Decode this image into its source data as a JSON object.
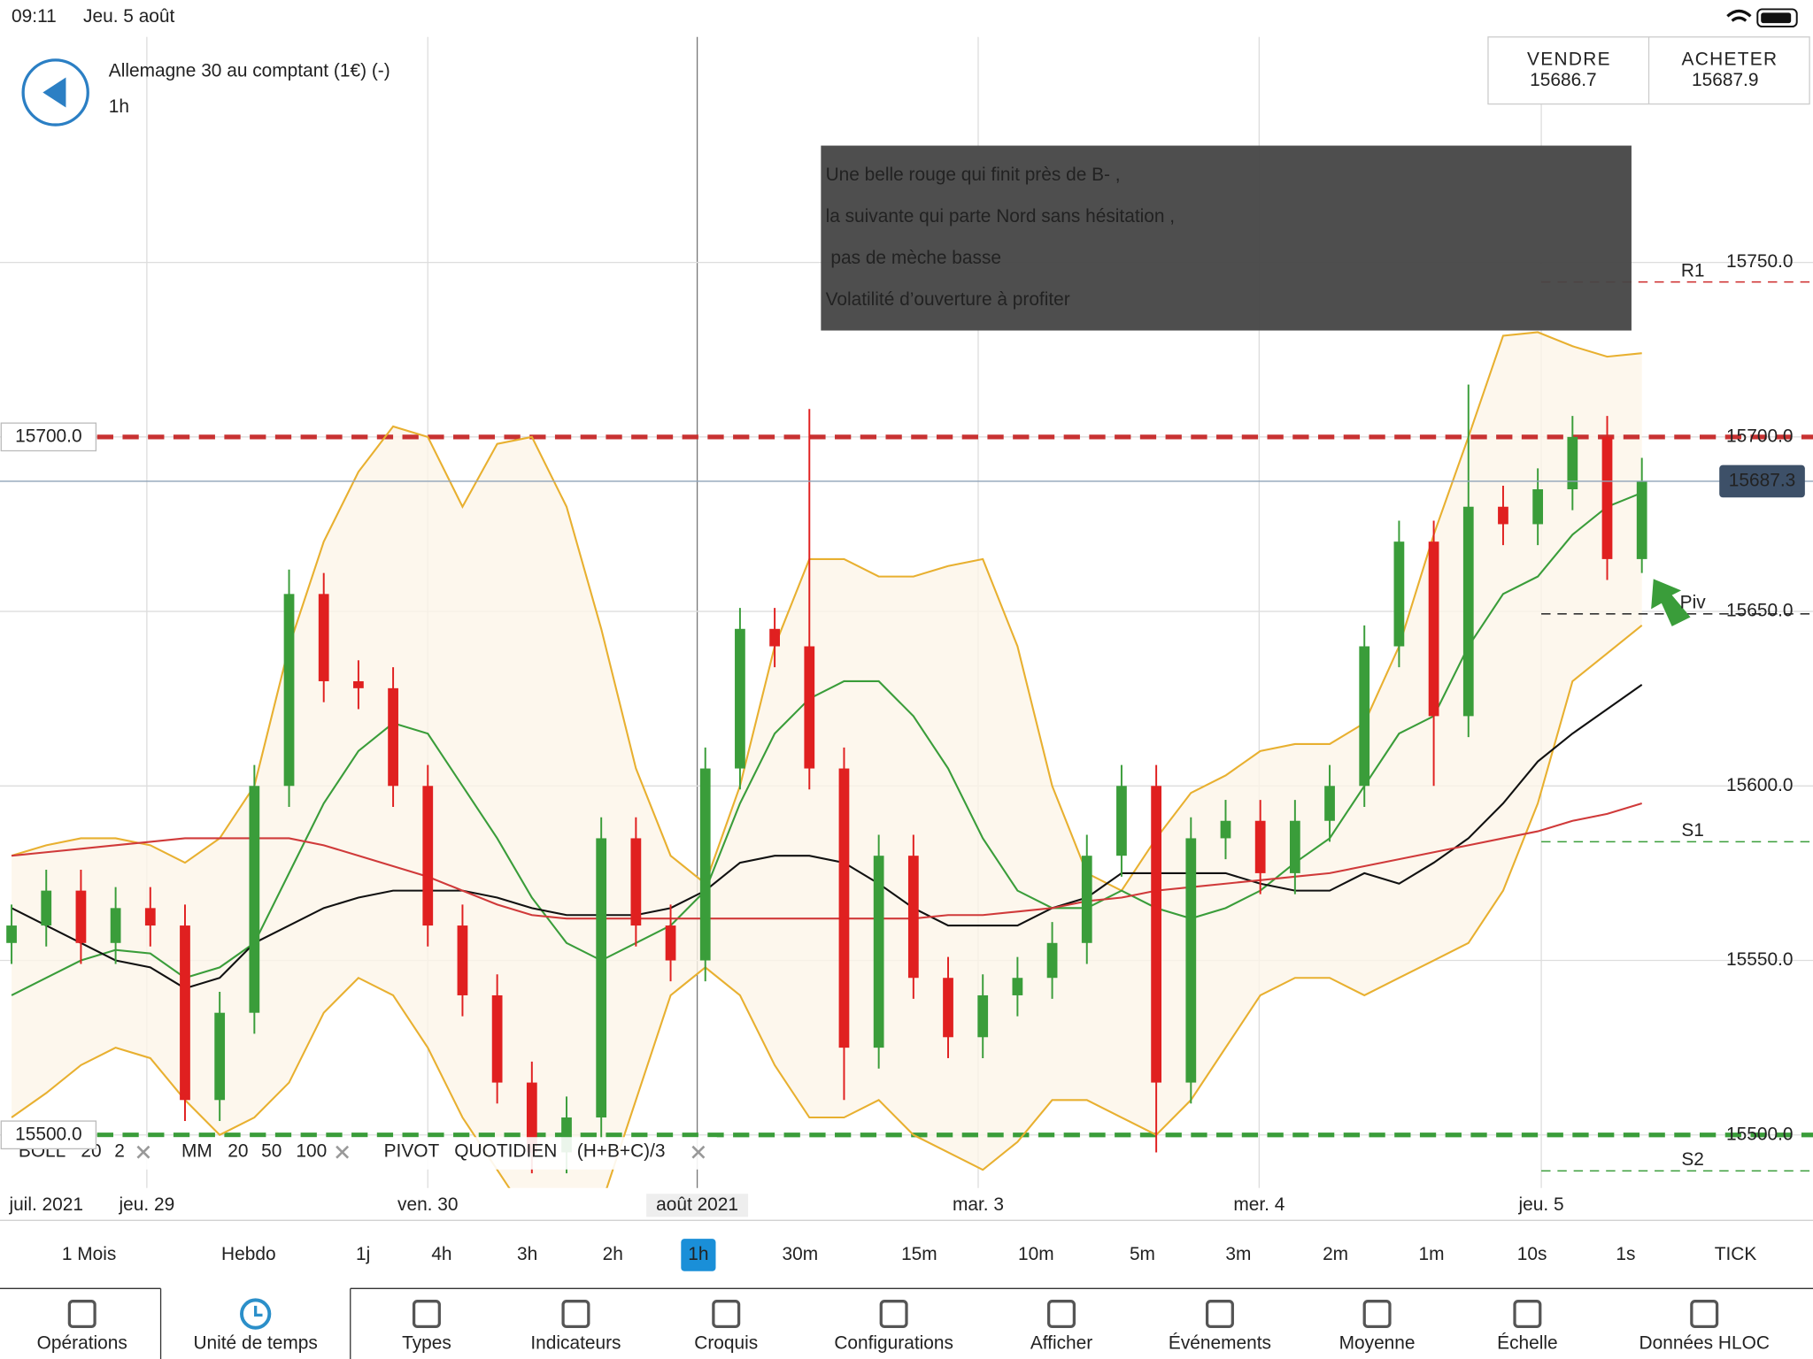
{
  "status_bar": {
    "time": "09:11",
    "date": "Jeu. 5 août"
  },
  "instrument": {
    "name": "Allemagne 30 au comptant (1€) (-)",
    "timeframe": "1h"
  },
  "quote": {
    "sell_label": "VENDRE",
    "sell_price": 15686.7,
    "buy_label": "ACHETER",
    "buy_price": 15687.9
  },
  "annotation": [
    "Une belle rouge qui finit près de B- ,",
    "la suivante qui parte Nord sans hésitation ,",
    " pas de mèche basse",
    "Volatilité d’ouverture à profiter"
  ],
  "chart_data": {
    "type": "candlestick",
    "up_color": "#3a9d3a",
    "down_color": "#e02020",
    "open": [
      15555,
      15560,
      15570,
      15555,
      15565,
      15560,
      15510,
      15535,
      15600,
      15655,
      15630,
      15628,
      15600,
      15560,
      15540,
      15515,
      15495,
      15505,
      15585,
      15560,
      15550,
      15605,
      15645,
      15640,
      15605,
      15525,
      15580,
      15545,
      15528,
      15540,
      15545,
      15555,
      15580,
      15600,
      15515,
      15585,
      15590,
      15575,
      15590,
      15600,
      15640,
      15670,
      15620,
      15680,
      15675,
      15685,
      15700,
      15665
    ],
    "high": [
      15566,
      15576,
      15576,
      15571,
      15571,
      15566,
      15541,
      15606,
      15662,
      15661,
      15636,
      15634,
      15606,
      15566,
      15546,
      15521,
      15511,
      15591,
      15591,
      15566,
      15611,
      15651,
      15651,
      15708,
      15611,
      15586,
      15586,
      15551,
      15546,
      15551,
      15561,
      15586,
      15606,
      15606,
      15591,
      15596,
      15596,
      15596,
      15606,
      15646,
      15676,
      15676,
      15715,
      15686,
      15691,
      15706,
      15706,
      15694
    ],
    "low": [
      15549,
      15554,
      15549,
      15549,
      15554,
      15504,
      15504,
      15529,
      15594,
      15624,
      15622,
      15594,
      15554,
      15534,
      15509,
      15489,
      15489,
      15499,
      15554,
      15544,
      15544,
      15599,
      15634,
      15599,
      15510,
      15519,
      15539,
      15522,
      15522,
      15534,
      15539,
      15549,
      15574,
      15495,
      15509,
      15579,
      15569,
      15569,
      15584,
      15594,
      15634,
      15600,
      15614,
      15669,
      15669,
      15679,
      15659,
      15661
    ],
    "close": [
      15560,
      15570,
      15555,
      15565,
      15560,
      15510,
      15535,
      15600,
      15655,
      15630,
      15628,
      15600,
      15560,
      15540,
      15515,
      15495,
      15505,
      15585,
      15560,
      15550,
      15605,
      15645,
      15640,
      15605,
      15525,
      15580,
      15545,
      15528,
      15540,
      15545,
      15555,
      15580,
      15600,
      15515,
      15585,
      15590,
      15575,
      15590,
      15600,
      15640,
      15670,
      15620,
      15680,
      15675,
      15685,
      15700,
      15665,
      15687.3
    ],
    "indicators": [
      {
        "color": "#e8b030",
        "values": [
          15580,
          15583,
          15585,
          15585,
          15583,
          15578,
          15585,
          15600,
          15640,
          15670,
          15690,
          15703,
          15700,
          15680,
          15698,
          15700,
          15680,
          15645,
          15605,
          15580,
          15572,
          15600,
          15640,
          15665,
          15665,
          15660,
          15660,
          15663,
          15665,
          15640,
          15600,
          15575,
          15570,
          15585,
          15598,
          15603,
          15610,
          15612,
          15612,
          15618,
          15640,
          15672,
          15700,
          15729,
          15730,
          15726,
          15723,
          15724
        ]
      },
      {
        "color": "#e8b030",
        "values": [
          15505,
          15512,
          15520,
          15525,
          15522,
          15510,
          15500,
          15505,
          15515,
          15535,
          15545,
          15540,
          15525,
          15505,
          15490,
          15475,
          15470,
          15480,
          15510,
          15540,
          15548,
          15540,
          15520,
          15505,
          15505,
          15510,
          15500,
          15495,
          15490,
          15498,
          15510,
          15510,
          15505,
          15500,
          15510,
          15525,
          15540,
          15545,
          15545,
          15540,
          15545,
          15550,
          15555,
          15570,
          15595,
          15630,
          15638,
          15646
        ]
      },
      {
        "color": "#3a9d3a",
        "values": [
          15540,
          15545,
          15550,
          15553,
          15552,
          15545,
          15548,
          15555,
          15575,
          15595,
          15610,
          15618,
          15615,
          15600,
          15585,
          15568,
          15555,
          15550,
          15555,
          15560,
          15570,
          15595,
          15615,
          15625,
          15630,
          15630,
          15620,
          15605,
          15585,
          15570,
          15565,
          15565,
          15570,
          15565,
          15562,
          15565,
          15570,
          15578,
          15585,
          15600,
          15615,
          15620,
          15640,
          15655,
          15660,
          15672,
          15680,
          15684
        ]
      },
      {
        "color": "#111111",
        "values": [
          15565,
          15560,
          15555,
          15550,
          15548,
          15542,
          15545,
          15555,
          15560,
          15565,
          15568,
          15570,
          15570,
          15570,
          15568,
          15565,
          15563,
          15563,
          15563,
          15565,
          15570,
          15578,
          15580,
          15580,
          15578,
          15572,
          15565,
          15560,
          15560,
          15560,
          15565,
          15568,
          15575,
          15575,
          15575,
          15575,
          15572,
          15570,
          15570,
          15575,
          15572,
          15578,
          15585,
          15595,
          15607,
          15615,
          15622,
          15629
        ]
      },
      {
        "color": "#d03a3a",
        "values": [
          15580,
          15581,
          15582,
          15583,
          15584,
          15585,
          15585,
          15585,
          15585,
          15583,
          15580,
          15577,
          15574,
          15570,
          15566,
          15563,
          15562,
          15562,
          15562,
          15562,
          15562,
          15562,
          15562,
          15562,
          15562,
          15562,
          15562,
          15563,
          15563,
          15564,
          15565,
          15567,
          15568,
          15570,
          15571,
          15572,
          15573,
          15574,
          15575,
          15577,
          15579,
          15581,
          15583,
          15585,
          15587,
          15590,
          15592,
          15595
        ]
      }
    ],
    "ylim": [
      15484.8,
      15814.6
    ],
    "yticks": [
      {
        "value": 15500,
        "label": "15500.0"
      },
      {
        "value": 15550,
        "label": "15550.0"
      },
      {
        "value": 15600,
        "label": "15600.0"
      },
      {
        "value": 15650,
        "label": "15650.0"
      },
      {
        "value": 15700,
        "label": "15700.0"
      },
      {
        "value": 15750,
        "label": "15750.0"
      }
    ],
    "time_labels": [
      "juil. 2021",
      "jeu. 29",
      "ven. 30",
      "août 2021",
      "mar. 3",
      "mer. 4",
      "jeu. 5"
    ],
    "price_lines": [
      {
        "value": 15700,
        "label": "15700.0",
        "color": "#c83232"
      },
      {
        "value": 15500,
        "label": "15500.0",
        "color": "#3a9d3a"
      }
    ],
    "pivots": [
      {
        "name": "R1",
        "value": 15744.4,
        "color": "#d03a3a"
      },
      {
        "name": "Piv",
        "value": 15649.3,
        "color": "#333333"
      },
      {
        "name": "S1",
        "value": 15584,
        "color": "#3a9d3a"
      },
      {
        "name": "S2",
        "value": 15489.7,
        "color": "#3a9d3a"
      }
    ]
  },
  "legend": {
    "boll": "BOLL",
    "boll_period": 20,
    "boll_dev": 2,
    "mm": "MM",
    "mm_periods": [
      20,
      50,
      100
    ],
    "pivot": "PIVOT",
    "pivot_type": "QUOTIDIEN",
    "pivot_formula": "(H+B+C)/3"
  },
  "timeframes": [
    "1 Mois",
    "Hebdo",
    "1j",
    "4h",
    "3h",
    "2h",
    "1h",
    "30m",
    "15m",
    "10m",
    "5m",
    "3m",
    "2m",
    "1m",
    "10s",
    "1s",
    "TICK"
  ],
  "tabs": [
    "Opérations",
    "Unité de temps",
    "Types",
    "Indicateurs",
    "Croquis",
    "Configurations",
    "Afficher",
    "Événements",
    "Moyenne",
    "Échelle",
    "Données HLOC"
  ]
}
